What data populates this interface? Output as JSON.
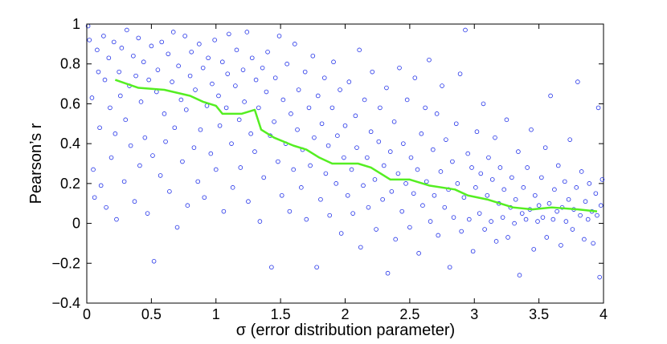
{
  "chart_data": {
    "type": "scatter",
    "title": "",
    "xlabel": "σ (error distribution parameter)",
    "ylabel": "Pearson’s r",
    "xlim": [
      0,
      4
    ],
    "ylim": [
      -0.4,
      1
    ],
    "x_ticks": [
      0,
      0.5,
      1,
      1.5,
      2,
      2.5,
      3,
      3.5,
      4
    ],
    "x_tick_labels": [
      "0",
      "0.5",
      "1",
      "1.5",
      "2",
      "2.5",
      "3",
      "3.5",
      "4"
    ],
    "y_ticks": [
      -0.4,
      -0.2,
      0,
      0.2,
      0.4,
      0.6,
      0.8,
      1
    ],
    "y_tick_labels": [
      "−0.4",
      "−0.2",
      "0",
      "0.2",
      "0.4",
      "0.6",
      "0.8",
      "1"
    ],
    "grid": false,
    "legend": "none",
    "series": [
      {
        "kind": "scatter",
        "color": "#1f2fe8",
        "marker": "open-circle",
        "points": [
          [
            0.01,
            0.99
          ],
          [
            0.02,
            0.92
          ],
          [
            0.04,
            0.63
          ],
          [
            0.05,
            0.27
          ],
          [
            0.06,
            0.13
          ],
          [
            0.08,
            0.87
          ],
          [
            0.09,
            0.76
          ],
          [
            0.1,
            0.48
          ],
          [
            0.11,
            0.19
          ],
          [
            0.13,
            0.94
          ],
          [
            0.14,
            0.72
          ],
          [
            0.15,
            0.08
          ],
          [
            0.17,
            0.83
          ],
          [
            0.18,
            0.58
          ],
          [
            0.19,
            0.33
          ],
          [
            0.21,
            0.91
          ],
          [
            0.22,
            0.45
          ],
          [
            0.23,
            0.02
          ],
          [
            0.25,
            0.76
          ],
          [
            0.26,
            0.64
          ],
          [
            0.27,
            0.88
          ],
          [
            0.29,
            0.21
          ],
          [
            0.3,
            0.52
          ],
          [
            0.31,
            0.97
          ],
          [
            0.33,
            0.69
          ],
          [
            0.34,
            0.39
          ],
          [
            0.36,
            0.84
          ],
          [
            0.37,
            0.11
          ],
          [
            0.38,
            0.74
          ],
          [
            0.4,
            0.93
          ],
          [
            0.41,
            0.29
          ],
          [
            0.42,
            0.61
          ],
          [
            0.44,
            0.81
          ],
          [
            0.45,
            0.43
          ],
          [
            0.47,
            0.05
          ],
          [
            0.48,
            0.72
          ],
          [
            0.5,
            0.89
          ],
          [
            0.51,
            0.34
          ],
          [
            0.52,
            -0.19
          ],
          [
            0.54,
            0.66
          ],
          [
            0.55,
            0.77
          ],
          [
            0.57,
            0.24
          ],
          [
            0.58,
            0.91
          ],
          [
            0.6,
            0.55
          ],
          [
            0.61,
            0.41
          ],
          [
            0.63,
            0.85
          ],
          [
            0.64,
            0.16
          ],
          [
            0.66,
            0.71
          ],
          [
            0.67,
            0.96
          ],
          [
            0.68,
            0.48
          ],
          [
            0.7,
            -0.02
          ],
          [
            0.71,
            0.79
          ],
          [
            0.73,
            0.62
          ],
          [
            0.74,
            0.31
          ],
          [
            0.76,
            0.94
          ],
          [
            0.77,
            0.57
          ],
          [
            0.78,
            0.09
          ],
          [
            0.8,
            0.74
          ],
          [
            0.81,
            0.86
          ],
          [
            0.83,
            0.38
          ],
          [
            0.84,
            0.67
          ],
          [
            0.86,
            0.21
          ],
          [
            0.87,
            0.9
          ],
          [
            0.88,
            0.47
          ],
          [
            0.9,
            0.78
          ],
          [
            0.91,
            0.13
          ],
          [
            0.93,
            0.59
          ],
          [
            0.94,
            0.83
          ],
          [
            0.96,
            0.35
          ],
          [
            0.97,
            0.7
          ],
          [
            0.99,
            0.92
          ],
          [
            1.0,
            0.27
          ],
          [
            1.02,
            0.64
          ],
          [
            1.03,
            0.49
          ],
          [
            1.05,
            0.81
          ],
          [
            1.06,
            0.06
          ],
          [
            1.08,
            0.58
          ],
          [
            1.09,
            0.75
          ],
          [
            1.1,
            0.95
          ],
          [
            1.12,
            0.4
          ],
          [
            1.13,
            0.18
          ],
          [
            1.15,
            0.69
          ],
          [
            1.16,
            0.87
          ],
          [
            1.18,
            0.52
          ],
          [
            1.19,
            0.28
          ],
          [
            1.21,
            0.77
          ],
          [
            1.22,
            0.61
          ],
          [
            1.24,
            0.96
          ],
          [
            1.25,
            0.11
          ],
          [
            1.27,
            0.45
          ],
          [
            1.28,
            0.83
          ],
          [
            1.3,
            0.36
          ],
          [
            1.31,
            0.72
          ],
          [
            1.33,
            0.58
          ],
          [
            1.34,
            0.01
          ],
          [
            1.36,
            0.78
          ],
          [
            1.37,
            0.23
          ],
          [
            1.39,
            0.66
          ],
          [
            1.4,
            0.86
          ],
          [
            1.42,
            0.44
          ],
          [
            1.43,
            -0.22
          ],
          [
            1.45,
            0.51
          ],
          [
            1.46,
            0.73
          ],
          [
            1.48,
            0.31
          ],
          [
            1.49,
            0.94
          ],
          [
            1.51,
            0.14
          ],
          [
            1.52,
            0.62
          ],
          [
            1.54,
            0.4
          ],
          [
            1.55,
            0.8
          ],
          [
            1.57,
            0.06
          ],
          [
            1.58,
            0.55
          ],
          [
            1.6,
            0.27
          ],
          [
            1.61,
            0.9
          ],
          [
            1.63,
            0.47
          ],
          [
            1.64,
            0.67
          ],
          [
            1.66,
            0.18
          ],
          [
            1.67,
            0.37
          ],
          [
            1.69,
            0.76
          ],
          [
            1.7,
            0.02
          ],
          [
            1.72,
            0.58
          ],
          [
            1.73,
            0.29
          ],
          [
            1.75,
            0.84
          ],
          [
            1.76,
            0.43
          ],
          [
            1.78,
            -0.22
          ],
          [
            1.79,
            0.64
          ],
          [
            1.81,
            0.12
          ],
          [
            1.82,
            0.5
          ],
          [
            1.84,
            0.73
          ],
          [
            1.85,
            0.25
          ],
          [
            1.87,
            0.39
          ],
          [
            1.88,
            0.04
          ],
          [
            1.9,
            0.58
          ],
          [
            1.91,
            0.81
          ],
          [
            1.93,
            0.2
          ],
          [
            1.94,
            0.44
          ],
          [
            1.96,
            0.67
          ],
          [
            1.97,
            -0.05
          ],
          [
            1.99,
            0.33
          ],
          [
            2.0,
            0.49
          ],
          [
            2.02,
            0.14
          ],
          [
            2.03,
            0.71
          ],
          [
            2.05,
            0.27
          ],
          [
            2.06,
            0.05
          ],
          [
            2.08,
            0.54
          ],
          [
            2.09,
            0.38
          ],
          [
            2.11,
            0.87
          ],
          [
            2.12,
            -0.12
          ],
          [
            2.14,
            0.19
          ],
          [
            2.15,
            0.62
          ],
          [
            2.17,
            0.33
          ],
          [
            2.18,
            0.08
          ],
          [
            2.2,
            0.46
          ],
          [
            2.21,
            0.76
          ],
          [
            2.23,
            0.22
          ],
          [
            2.24,
            -0.03
          ],
          [
            2.26,
            0.41
          ],
          [
            2.27,
            0.58
          ],
          [
            2.29,
            0.12
          ],
          [
            2.3,
            0.29
          ],
          [
            2.32,
            0.68
          ],
          [
            2.33,
            -0.25
          ],
          [
            2.35,
            0.36
          ],
          [
            2.36,
            0.16
          ],
          [
            2.38,
            0.51
          ],
          [
            2.39,
            -0.08
          ],
          [
            2.41,
            0.25
          ],
          [
            2.42,
            0.78
          ],
          [
            2.44,
            0.06
          ],
          [
            2.45,
            0.4
          ],
          [
            2.47,
            0.2
          ],
          [
            2.48,
            0.62
          ],
          [
            2.5,
            -0.02
          ],
          [
            2.51,
            0.33
          ],
          [
            2.53,
            0.15
          ],
          [
            2.54,
            0.73
          ],
          [
            2.56,
            0.27
          ],
          [
            2.57,
            -0.15
          ],
          [
            2.59,
            0.45
          ],
          [
            2.6,
            0.09
          ],
          [
            2.62,
            0.58
          ],
          [
            2.63,
            0.21
          ],
          [
            2.65,
            0.82
          ],
          [
            2.66,
            0.01
          ],
          [
            2.68,
            0.37
          ],
          [
            2.69,
            0.14
          ],
          [
            2.71,
            0.55
          ],
          [
            2.72,
            -0.06
          ],
          [
            2.74,
            0.26
          ],
          [
            2.75,
            0.69
          ],
          [
            2.77,
            0.08
          ],
          [
            2.78,
            0.42
          ],
          [
            2.8,
            0.17
          ],
          [
            2.81,
            -0.22
          ],
          [
            2.83,
            0.31
          ],
          [
            2.84,
            0.03
          ],
          [
            2.86,
            0.5
          ],
          [
            2.87,
            0.2
          ],
          [
            2.89,
            0.75
          ],
          [
            2.9,
            -0.04
          ],
          [
            2.92,
            0.13
          ],
          [
            2.93,
            0.97
          ],
          [
            2.95,
            0.35
          ],
          [
            2.96,
            0.02
          ],
          [
            2.98,
            0.28
          ],
          [
            2.99,
            -0.14
          ],
          [
            3.01,
            0.18
          ],
          [
            3.02,
            0.46
          ],
          [
            3.04,
            0.05
          ],
          [
            3.05,
            0.25
          ],
          [
            3.07,
            0.6
          ],
          [
            3.08,
            -0.03
          ],
          [
            3.1,
            0.14
          ],
          [
            3.11,
            0.33
          ],
          [
            3.13,
            0.01
          ],
          [
            3.14,
            0.22
          ],
          [
            3.16,
            0.43
          ],
          [
            3.17,
            -0.09
          ],
          [
            3.19,
            0.1
          ],
          [
            3.2,
            0.28
          ],
          [
            3.22,
            0.03
          ],
          [
            3.23,
            0.17
          ],
          [
            3.25,
            0.52
          ],
          [
            3.26,
            -0.07
          ],
          [
            3.28,
            0.08
          ],
          [
            3.29,
            0.23
          ],
          [
            3.31,
            0.0
          ],
          [
            3.32,
            0.12
          ],
          [
            3.34,
            0.36
          ],
          [
            3.35,
            -0.26
          ],
          [
            3.37,
            0.05
          ],
          [
            3.38,
            0.18
          ],
          [
            3.4,
            0.02
          ],
          [
            3.41,
            0.28
          ],
          [
            3.43,
            0.07
          ],
          [
            3.44,
            0.47
          ],
          [
            3.46,
            -0.13
          ],
          [
            3.47,
            0.14
          ],
          [
            3.49,
            0.01
          ],
          [
            3.5,
            0.09
          ],
          [
            3.52,
            0.23
          ],
          [
            3.53,
            0.03
          ],
          [
            3.55,
            0.38
          ],
          [
            3.56,
            -0.07
          ],
          [
            3.58,
            0.1
          ],
          [
            3.59,
            0.64
          ],
          [
            3.61,
            0.02
          ],
          [
            3.62,
            0.17
          ],
          [
            3.64,
            0.06
          ],
          [
            3.65,
            0.29
          ],
          [
            3.67,
            -0.11
          ],
          [
            3.68,
            0.08
          ],
          [
            3.7,
            0.21
          ],
          [
            3.71,
            0.01
          ],
          [
            3.73,
            0.12
          ],
          [
            3.74,
            0.42
          ],
          [
            3.76,
            -0.03
          ],
          [
            3.77,
            0.07
          ],
          [
            3.79,
            0.18
          ],
          [
            3.8,
            0.71
          ],
          [
            3.82,
            0.04
          ],
          [
            3.83,
            0.26
          ],
          [
            3.85,
            -0.08
          ],
          [
            3.86,
            0.11
          ],
          [
            3.88,
            0.02
          ],
          [
            3.89,
            0.2
          ],
          [
            3.91,
            0.06
          ],
          [
            3.92,
            -0.1
          ],
          [
            3.94,
            0.15
          ],
          [
            3.95,
            0.04
          ],
          [
            3.96,
            0.58
          ],
          [
            3.97,
            -0.27
          ],
          [
            3.98,
            0.09
          ],
          [
            3.99,
            0.22
          ]
        ]
      },
      {
        "kind": "line",
        "color": "#55ee22",
        "x": [
          0.22,
          0.4,
          0.6,
          0.8,
          0.9,
          1.0,
          1.05,
          1.2,
          1.3,
          1.35,
          1.45,
          1.6,
          1.7,
          1.8,
          1.9,
          2.0,
          2.1,
          2.2,
          2.35,
          2.5,
          2.65,
          2.85,
          2.95,
          3.1,
          3.3,
          3.45,
          3.6,
          3.8,
          3.95
        ],
        "y": [
          0.72,
          0.68,
          0.67,
          0.64,
          0.61,
          0.59,
          0.55,
          0.55,
          0.57,
          0.47,
          0.43,
          0.39,
          0.37,
          0.33,
          0.3,
          0.3,
          0.3,
          0.28,
          0.22,
          0.22,
          0.19,
          0.17,
          0.14,
          0.12,
          0.08,
          0.07,
          0.08,
          0.07,
          0.06
        ]
      }
    ]
  }
}
